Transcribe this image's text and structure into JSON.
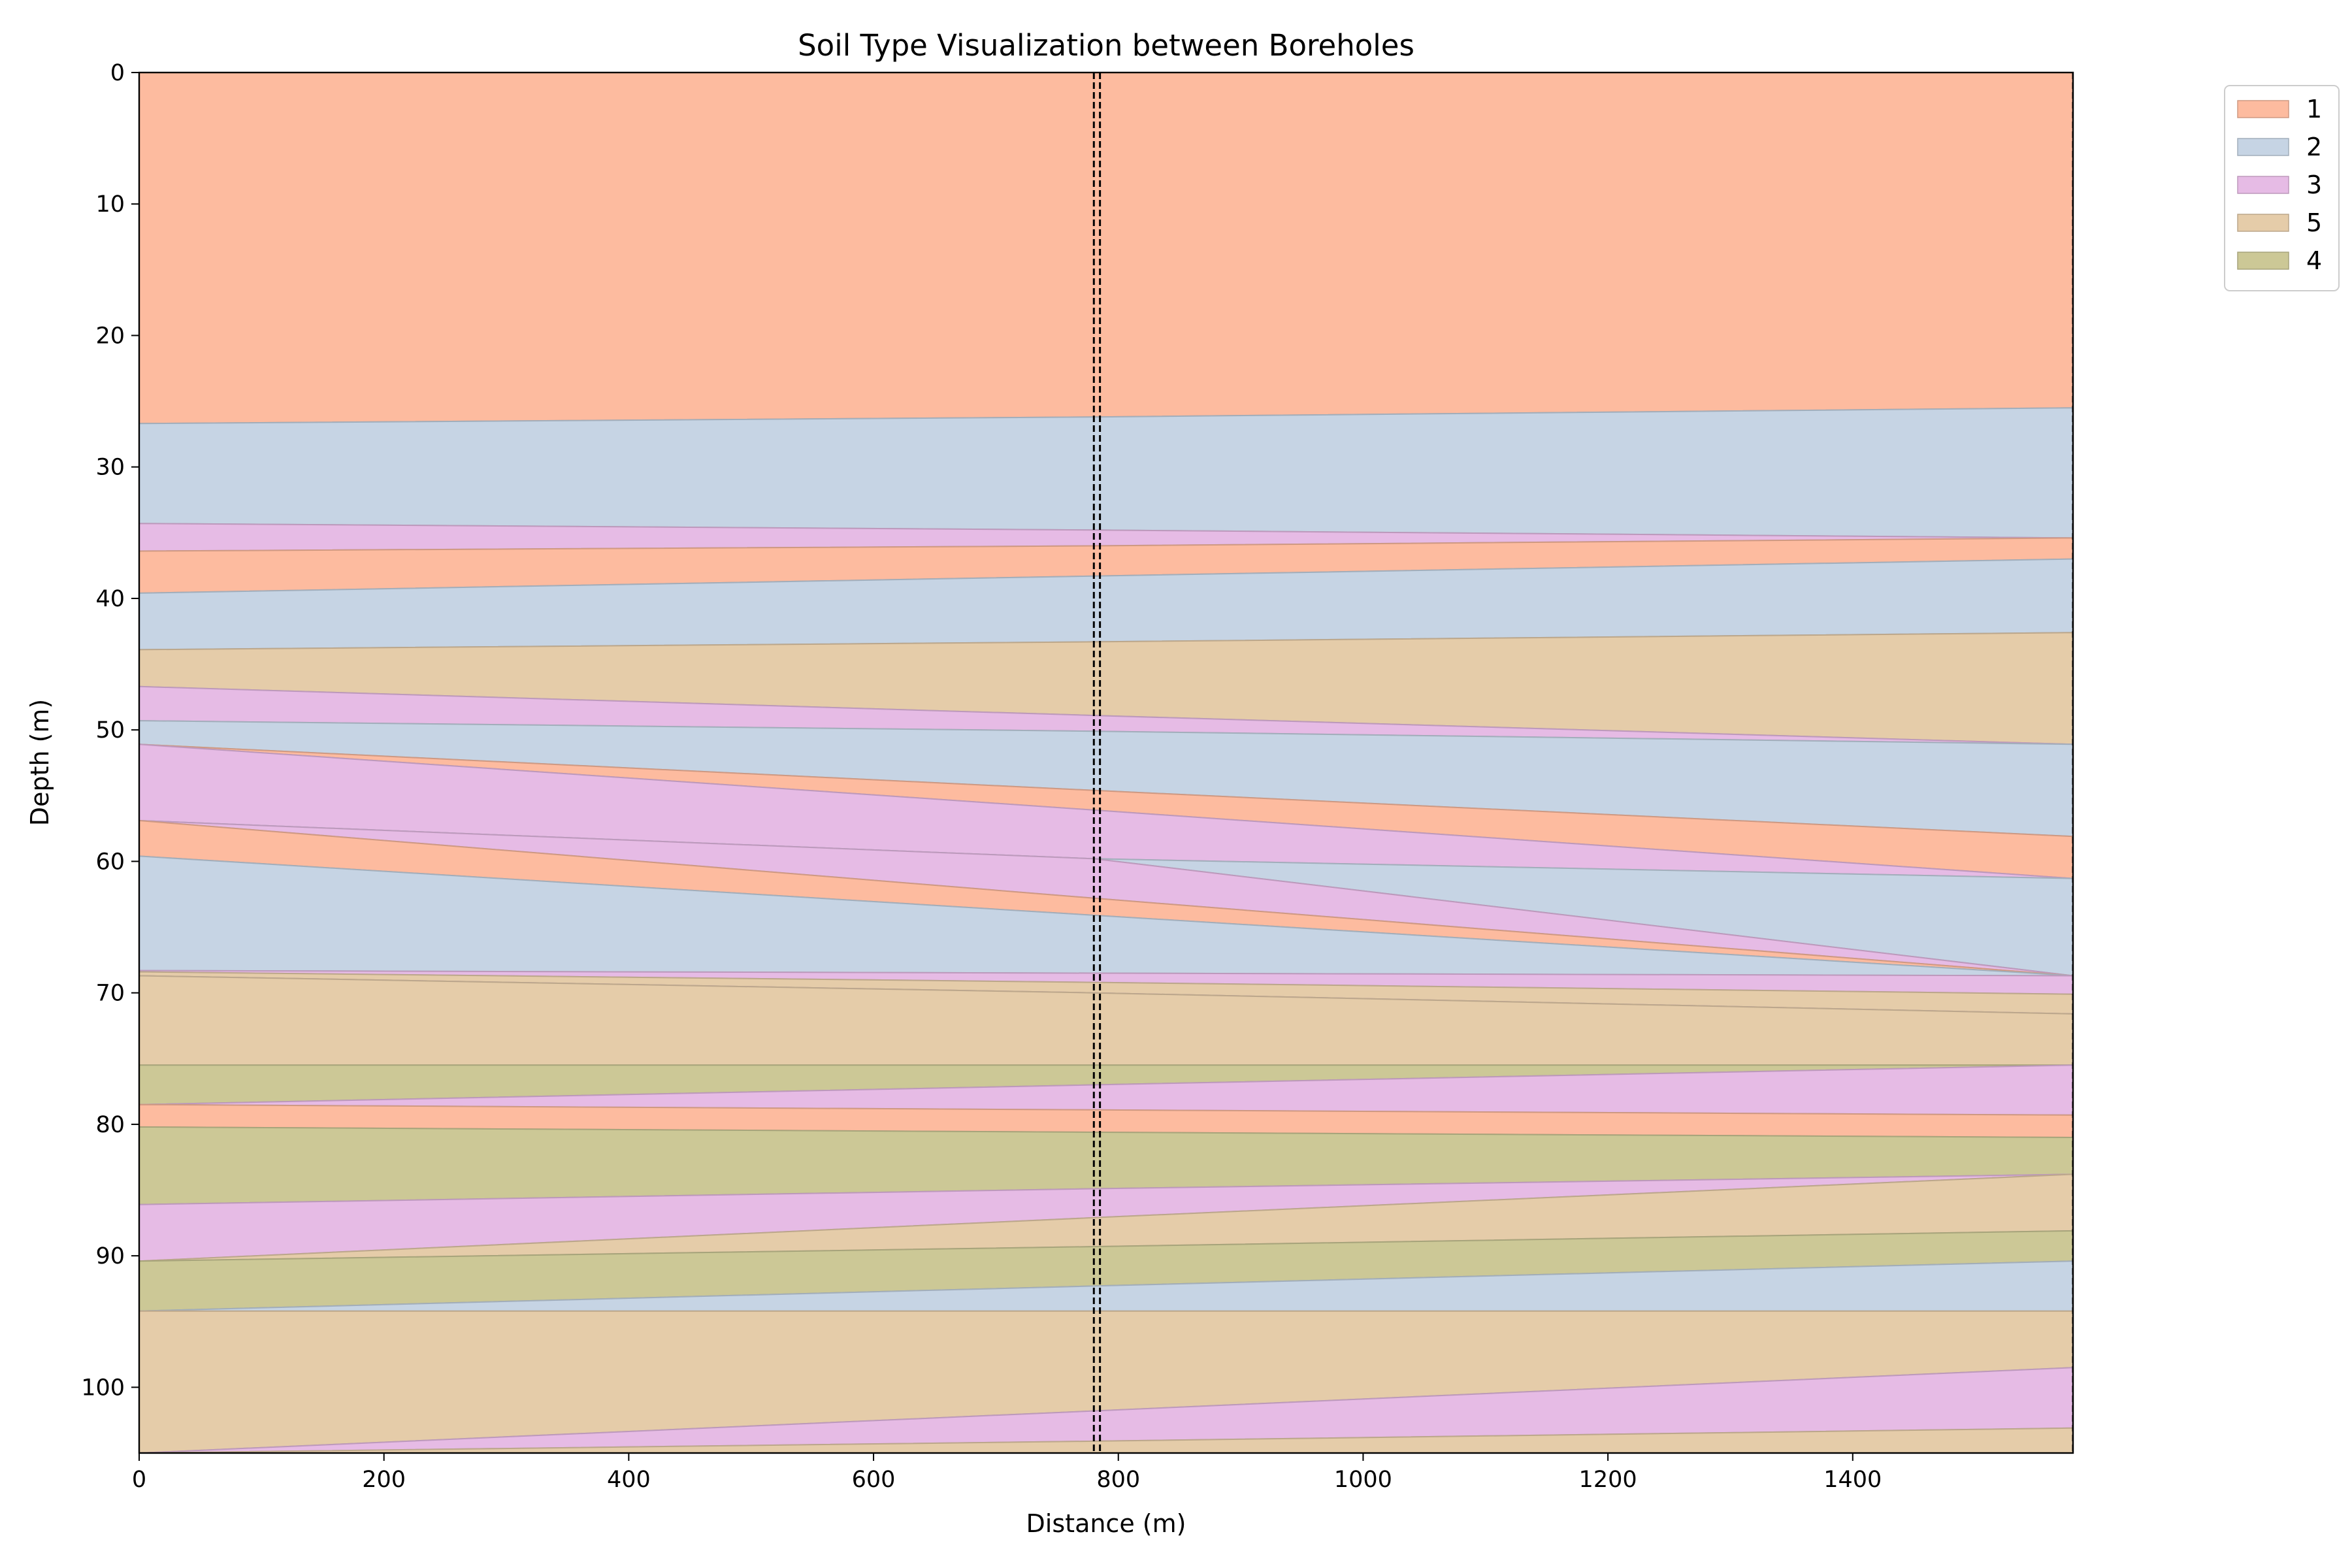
{
  "chart_data": {
    "type": "area",
    "title": "Soil Type Visualization between Boreholes",
    "xlabel": "Distance (m)",
    "ylabel": "Depth (m)",
    "xlim": [
      0,
      1580
    ],
    "ylim": [
      105,
      0
    ],
    "xticks": [
      0,
      200,
      400,
      600,
      800,
      1000,
      1200,
      1400
    ],
    "yticks": [
      0,
      10,
      20,
      30,
      40,
      50,
      60,
      70,
      80,
      90,
      100
    ],
    "grid": false,
    "legend": {
      "placement": "outside-top-right",
      "entries": [
        {
          "label": "1",
          "color": "#fdbb9f"
        },
        {
          "label": "2",
          "color": "#c6d4e4"
        },
        {
          "label": "3",
          "color": "#e6bbe5"
        },
        {
          "label": "5",
          "color": "#e5cca9"
        },
        {
          "label": "4",
          "color": "#ccc896"
        }
      ]
    },
    "colors": {
      "1": "#fdbb9f",
      "2": "#c6d4e4",
      "3": "#e6bbe5",
      "4": "#ccc896",
      "5": "#e5cca9"
    },
    "borehole_x": [
      780,
      785,
      1580
    ],
    "layers": [
      {
        "soil": "1",
        "x": [
          0,
          780,
          1580
        ],
        "top": [
          0,
          0,
          0
        ],
        "bottom": [
          26.7,
          26.2,
          25.5
        ]
      },
      {
        "soil": "2",
        "x": [
          0,
          780,
          1580
        ],
        "top": [
          26.7,
          26.2,
          25.5
        ],
        "bottom": [
          34.3,
          34.8,
          35.4
        ]
      },
      {
        "soil": "3",
        "x": [
          0,
          780,
          1580
        ],
        "top": [
          34.3,
          34.8,
          35.4
        ],
        "bottom": [
          36.4,
          36.0,
          35.4
        ]
      },
      {
        "soil": "1",
        "x": [
          0,
          780,
          1580
        ],
        "top": [
          36.4,
          36.0,
          35.4
        ],
        "bottom": [
          39.6,
          38.3,
          37.0
        ]
      },
      {
        "soil": "2",
        "x": [
          0,
          780,
          1580
        ],
        "top": [
          39.6,
          38.3,
          37.0
        ],
        "bottom": [
          43.9,
          43.3,
          42.6
        ]
      },
      {
        "soil": "5",
        "x": [
          0,
          780,
          1580
        ],
        "top": [
          43.9,
          43.3,
          42.6
        ],
        "bottom": [
          46.7,
          48.9,
          51.1
        ]
      },
      {
        "soil": "3",
        "x": [
          0,
          780,
          1580
        ],
        "top": [
          46.7,
          48.9,
          51.1
        ],
        "bottom": [
          49.3,
          50.1,
          51.1
        ]
      },
      {
        "soil": "2",
        "x": [
          0,
          780,
          1580
        ],
        "top": [
          49.3,
          50.1,
          51.1
        ],
        "bottom": [
          51.1,
          54.6,
          58.1
        ]
      },
      {
        "soil": "1",
        "x": [
          0,
          780,
          1580
        ],
        "top": [
          51.1,
          54.6,
          58.1
        ],
        "bottom": [
          51.1,
          56.1,
          61.3
        ]
      },
      {
        "soil": "3",
        "x": [
          0,
          780,
          1580
        ],
        "top": [
          51.1,
          56.1,
          61.3
        ],
        "bottom": [
          56.9,
          59.8,
          61.3
        ]
      },
      {
        "soil": "2",
        "x": [
          0,
          780,
          1580
        ],
        "top": [
          56.9,
          59.8,
          61.3
        ],
        "bottom": [
          56.9,
          59.8,
          68.7
        ]
      },
      {
        "soil": "3",
        "x": [
          0,
          780,
          1580
        ],
        "top": [
          56.9,
          59.8,
          68.7
        ],
        "bottom": [
          56.9,
          62.8,
          68.7
        ]
      },
      {
        "soil": "1",
        "x": [
          0,
          780,
          1580
        ],
        "top": [
          56.9,
          62.8,
          68.7
        ],
        "bottom": [
          59.6,
          64.1,
          68.7
        ]
      },
      {
        "soil": "2",
        "x": [
          0,
          780,
          1580
        ],
        "top": [
          59.6,
          64.1,
          68.7
        ],
        "bottom": [
          68.3,
          68.5,
          68.7
        ]
      },
      {
        "soil": "3",
        "x": [
          0,
          780,
          1580
        ],
        "top": [
          68.3,
          68.5,
          68.7
        ],
        "bottom": [
          68.4,
          69.2,
          70.1
        ]
      },
      {
        "soil": "5",
        "x": [
          0,
          780,
          1580
        ],
        "top": [
          68.4,
          69.2,
          70.1
        ],
        "bottom": [
          68.7,
          70.0,
          71.6
        ]
      },
      {
        "soil": "3",
        "x": [
          0,
          780,
          1580
        ],
        "top": [
          68.7,
          70.0,
          71.6
        ],
        "bottom": [
          68.7,
          70.0,
          71.6
        ]
      },
      {
        "soil": "5",
        "x": [
          0,
          780,
          1580
        ],
        "top": [
          68.7,
          70.0,
          71.6
        ],
        "bottom": [
          75.5,
          75.5,
          75.5
        ]
      },
      {
        "soil": "4",
        "x": [
          0,
          780,
          1580
        ],
        "top": [
          75.5,
          75.5,
          75.5
        ],
        "bottom": [
          78.5,
          77.0,
          75.5
        ]
      },
      {
        "soil": "3",
        "x": [
          0,
          780,
          1580
        ],
        "top": [
          78.5,
          77.0,
          75.5
        ],
        "bottom": [
          78.5,
          78.9,
          79.3
        ]
      },
      {
        "soil": "1",
        "x": [
          0,
          780,
          1580
        ],
        "top": [
          78.5,
          78.9,
          79.3
        ],
        "bottom": [
          80.2,
          80.6,
          81.0
        ]
      },
      {
        "soil": "4",
        "x": [
          0,
          780,
          1580
        ],
        "top": [
          80.2,
          80.6,
          81.0
        ],
        "bottom": [
          86.1,
          84.9,
          83.8
        ]
      },
      {
        "soil": "3",
        "x": [
          0,
          780,
          1580
        ],
        "top": [
          86.1,
          84.9,
          83.8
        ],
        "bottom": [
          90.4,
          87.1,
          83.8
        ]
      },
      {
        "soil": "5",
        "x": [
          0,
          780,
          1580
        ],
        "top": [
          90.4,
          87.1,
          83.8
        ],
        "bottom": [
          90.4,
          89.3,
          88.1
        ]
      },
      {
        "soil": "4",
        "x": [
          0,
          780,
          1580
        ],
        "top": [
          90.4,
          89.3,
          88.1
        ],
        "bottom": [
          94.2,
          92.3,
          90.4
        ]
      },
      {
        "soil": "2",
        "x": [
          0,
          780,
          1580
        ],
        "top": [
          94.2,
          92.3,
          90.4
        ],
        "bottom": [
          94.2,
          94.2,
          94.2
        ]
      },
      {
        "soil": "5",
        "x": [
          0,
          780,
          1580
        ],
        "top": [
          94.2,
          94.2,
          94.2
        ],
        "bottom": [
          105.0,
          101.8,
          98.5
        ]
      },
      {
        "soil": "3",
        "x": [
          0,
          780,
          1580
        ],
        "top": [
          105.0,
          101.8,
          98.5
        ],
        "bottom": [
          105.0,
          104.1,
          103.1
        ]
      },
      {
        "soil": "5",
        "x": [
          0,
          780,
          1580
        ],
        "top": [
          105.0,
          104.1,
          103.1
        ],
        "bottom": [
          105.0,
          105.0,
          105.0
        ]
      }
    ]
  }
}
